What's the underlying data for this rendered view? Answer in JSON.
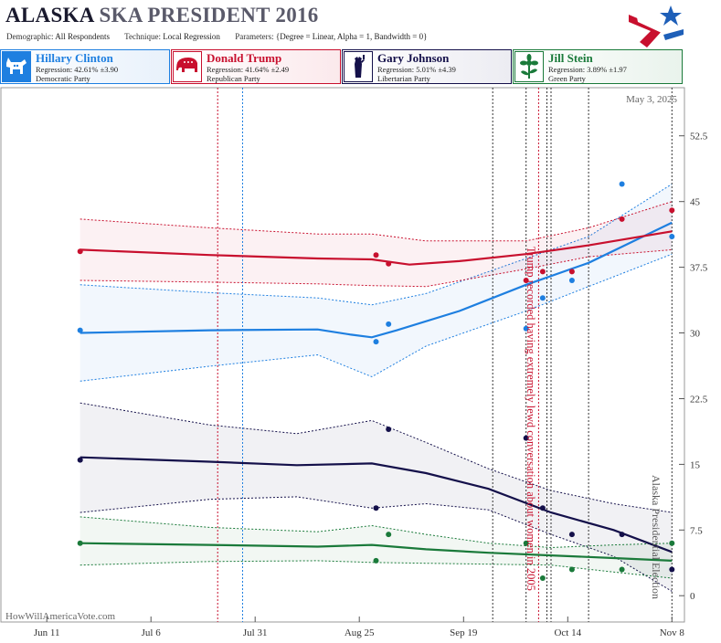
{
  "header": {
    "state": "ALASKA",
    "race": "SKA PRESIDENT 2016",
    "demographic_label": "Demographic:",
    "demographic": "All Respondents",
    "technique_label": "Technique:",
    "technique": "Local Regression",
    "parameters_label": "Parameters:",
    "parameters": "{Degree = Linear, Alpha = 1, Bandwidth = 0}"
  },
  "candidates": [
    {
      "name": "Hillary Clinton",
      "regression": "Regression: 42.61% ±3.90",
      "party": "Democratic Party",
      "color": "#1e7fe0",
      "icon": "donkey-icon"
    },
    {
      "name": "Donald Trump",
      "regression": "Regression: 41.64% ±2.49",
      "party": "Republican Party",
      "color": "#c8102e",
      "icon": "elephant-icon"
    },
    {
      "name": "Gary Johnson",
      "regression": "Regression: 5.01% ±4.39",
      "party": "Libertarian Party",
      "color": "#14104a",
      "icon": "liberty-icon"
    },
    {
      "name": "Jill Stein",
      "regression": "Regression: 3.89% ±1.97",
      "party": "Green Party",
      "color": "#1a7a3a",
      "icon": "flower-icon"
    }
  ],
  "chart": {
    "date_label": "May 3, 2025",
    "watermark": "HowWillAmericaVote.com",
    "event_label": "Trump recorded having extremely lewd conversation about women in 2005",
    "election_label": "Alaska Presidential Election"
  },
  "chart_data": {
    "type": "scatter",
    "ylim": [
      -3,
      58
    ],
    "y_ticks": [
      0,
      7.5,
      15,
      22.5,
      30,
      37.5,
      45,
      52.5
    ],
    "y_tick_labels": [
      "0",
      "7.5",
      "15",
      "22.5",
      "30",
      "37.5",
      "45",
      "52.5"
    ],
    "x_ticks": [
      "2016-06-11",
      "2016-07-06",
      "2016-07-31",
      "2016-08-25",
      "2016-09-19",
      "2016-10-14",
      "2016-11-08"
    ],
    "x_tick_labels": [
      "Jun 11",
      "Jul 6",
      "Jul 31",
      "Aug 25",
      "Sep 19",
      "Oct 14",
      "Nov 8"
    ],
    "xlim": [
      "2016-05-31",
      "2016-11-11"
    ],
    "grid": false,
    "vlines": [
      {
        "date": "2016-07-22",
        "color": "#c8102e"
      },
      {
        "date": "2016-07-28",
        "color": "#1e7fe0"
      },
      {
        "date": "2016-09-26",
        "color": "#333333"
      },
      {
        "date": "2016-10-04",
        "color": "#333333"
      },
      {
        "date": "2016-10-07",
        "color": "#c8102e"
      },
      {
        "date": "2016-10-09",
        "color": "#333333"
      },
      {
        "date": "2016-10-10",
        "color": "#333333"
      },
      {
        "date": "2016-10-19",
        "color": "#333333"
      },
      {
        "date": "2016-11-08",
        "color": "#333333"
      }
    ],
    "series": [
      {
        "name": "Hillary Clinton",
        "color": "#1e7fe0",
        "points": [
          [
            "2016-06-19",
            30.3
          ],
          [
            "2016-08-29",
            29.0
          ],
          [
            "2016-09-01",
            31.0
          ],
          [
            "2016-10-04",
            30.5
          ],
          [
            "2016-10-08",
            34.0
          ],
          [
            "2016-10-15",
            36.0
          ],
          [
            "2016-10-27",
            47.0
          ],
          [
            "2016-11-08",
            41.0
          ]
        ],
        "trend": [
          [
            "2016-06-19",
            30.0
          ],
          [
            "2016-07-20",
            30.3
          ],
          [
            "2016-08-15",
            30.4
          ],
          [
            "2016-08-23",
            29.8
          ],
          [
            "2016-08-28",
            29.5
          ],
          [
            "2016-09-03",
            30.3
          ],
          [
            "2016-09-18",
            32.5
          ],
          [
            "2016-10-04",
            35.5
          ],
          [
            "2016-10-19",
            38.0
          ],
          [
            "2016-11-08",
            42.6
          ]
        ],
        "upper": [
          [
            "2016-06-19",
            35.5
          ],
          [
            "2016-07-20",
            34.6
          ],
          [
            "2016-08-15",
            34.0
          ],
          [
            "2016-08-28",
            33.2
          ],
          [
            "2016-09-10",
            34.5
          ],
          [
            "2016-10-04",
            38.5
          ],
          [
            "2016-10-19",
            41.0
          ],
          [
            "2016-11-08",
            47.0
          ]
        ],
        "lower": [
          [
            "2016-06-19",
            24.5
          ],
          [
            "2016-07-20",
            26.2
          ],
          [
            "2016-08-15",
            27.5
          ],
          [
            "2016-08-28",
            25.0
          ],
          [
            "2016-09-10",
            28.5
          ],
          [
            "2016-10-04",
            32.5
          ],
          [
            "2016-10-19",
            35.3
          ],
          [
            "2016-11-08",
            39.0
          ]
        ]
      },
      {
        "name": "Donald Trump",
        "color": "#c8102e",
        "points": [
          [
            "2016-06-19",
            39.3
          ],
          [
            "2016-08-29",
            38.9
          ],
          [
            "2016-09-01",
            37.9
          ],
          [
            "2016-10-04",
            36.0
          ],
          [
            "2016-10-08",
            37.0
          ],
          [
            "2016-10-15",
            37.0
          ],
          [
            "2016-10-27",
            43.0
          ],
          [
            "2016-11-08",
            44.0
          ]
        ],
        "trend": [
          [
            "2016-06-19",
            39.5
          ],
          [
            "2016-07-20",
            38.9
          ],
          [
            "2016-08-15",
            38.5
          ],
          [
            "2016-08-28",
            38.4
          ],
          [
            "2016-09-06",
            37.8
          ],
          [
            "2016-09-18",
            38.2
          ],
          [
            "2016-10-04",
            39.0
          ],
          [
            "2016-10-19",
            40.0
          ],
          [
            "2016-11-08",
            41.6
          ]
        ],
        "upper": [
          [
            "2016-06-19",
            43.0
          ],
          [
            "2016-07-20",
            42.0
          ],
          [
            "2016-08-15",
            41.3
          ],
          [
            "2016-08-28",
            41.3
          ],
          [
            "2016-09-10",
            40.5
          ],
          [
            "2016-10-04",
            40.5
          ],
          [
            "2016-10-19",
            42.0
          ],
          [
            "2016-11-08",
            45.0
          ]
        ],
        "lower": [
          [
            "2016-06-19",
            36.0
          ],
          [
            "2016-07-20",
            35.8
          ],
          [
            "2016-08-15",
            35.6
          ],
          [
            "2016-08-28",
            35.4
          ],
          [
            "2016-09-10",
            35.3
          ],
          [
            "2016-10-04",
            37.3
          ],
          [
            "2016-10-19",
            38.7
          ],
          [
            "2016-11-08",
            39.5
          ]
        ]
      },
      {
        "name": "Gary Johnson",
        "color": "#14104a",
        "points": [
          [
            "2016-06-19",
            15.5
          ],
          [
            "2016-08-29",
            10.0
          ],
          [
            "2016-09-01",
            19.0
          ],
          [
            "2016-10-04",
            18.0
          ],
          [
            "2016-10-08",
            10.0
          ],
          [
            "2016-10-15",
            7.0
          ],
          [
            "2016-10-27",
            7.0
          ],
          [
            "2016-11-08",
            3.0
          ]
        ],
        "trend": [
          [
            "2016-06-19",
            15.8
          ],
          [
            "2016-07-20",
            15.3
          ],
          [
            "2016-08-10",
            14.9
          ],
          [
            "2016-08-28",
            15.1
          ],
          [
            "2016-09-10",
            14.0
          ],
          [
            "2016-09-25",
            12.2
          ],
          [
            "2016-10-10",
            9.5
          ],
          [
            "2016-10-25",
            7.5
          ],
          [
            "2016-11-08",
            5.0
          ]
        ],
        "upper": [
          [
            "2016-06-19",
            22.0
          ],
          [
            "2016-07-20",
            19.5
          ],
          [
            "2016-08-10",
            18.5
          ],
          [
            "2016-08-28",
            20.0
          ],
          [
            "2016-09-10",
            17.5
          ],
          [
            "2016-09-25",
            14.5
          ],
          [
            "2016-10-10",
            12.0
          ],
          [
            "2016-10-25",
            10.5
          ],
          [
            "2016-11-08",
            9.5
          ]
        ],
        "lower": [
          [
            "2016-06-19",
            9.5
          ],
          [
            "2016-07-20",
            11.0
          ],
          [
            "2016-08-10",
            11.3
          ],
          [
            "2016-08-28",
            10.0
          ],
          [
            "2016-09-10",
            10.5
          ],
          [
            "2016-09-25",
            9.8
          ],
          [
            "2016-10-10",
            7.0
          ],
          [
            "2016-10-25",
            4.5
          ],
          [
            "2016-11-08",
            0.5
          ]
        ]
      },
      {
        "name": "Jill Stein",
        "color": "#1a7a3a",
        "points": [
          [
            "2016-06-19",
            6.0
          ],
          [
            "2016-08-29",
            4.0
          ],
          [
            "2016-09-01",
            7.0
          ],
          [
            "2016-10-04",
            6.0
          ],
          [
            "2016-10-08",
            2.0
          ],
          [
            "2016-10-15",
            3.0
          ],
          [
            "2016-10-27",
            3.0
          ],
          [
            "2016-11-08",
            6.0
          ]
        ],
        "trend": [
          [
            "2016-06-19",
            6.0
          ],
          [
            "2016-07-20",
            5.8
          ],
          [
            "2016-08-15",
            5.6
          ],
          [
            "2016-08-28",
            5.8
          ],
          [
            "2016-09-10",
            5.3
          ],
          [
            "2016-09-25",
            4.9
          ],
          [
            "2016-10-10",
            4.6
          ],
          [
            "2016-10-25",
            4.3
          ],
          [
            "2016-11-08",
            4.0
          ]
        ],
        "upper": [
          [
            "2016-06-19",
            9.0
          ],
          [
            "2016-07-20",
            7.8
          ],
          [
            "2016-08-15",
            7.3
          ],
          [
            "2016-08-28",
            8.0
          ],
          [
            "2016-09-10",
            7.0
          ],
          [
            "2016-09-25",
            6.0
          ],
          [
            "2016-10-10",
            5.5
          ],
          [
            "2016-10-25",
            5.8
          ],
          [
            "2016-11-08",
            6.0
          ]
        ],
        "lower": [
          [
            "2016-06-19",
            3.5
          ],
          [
            "2016-07-20",
            3.9
          ],
          [
            "2016-08-15",
            4.0
          ],
          [
            "2016-08-28",
            3.8
          ],
          [
            "2016-09-10",
            3.7
          ],
          [
            "2016-09-25",
            3.6
          ],
          [
            "2016-10-10",
            3.5
          ],
          [
            "2016-10-25",
            2.7
          ],
          [
            "2016-11-08",
            2.0
          ]
        ]
      }
    ]
  }
}
